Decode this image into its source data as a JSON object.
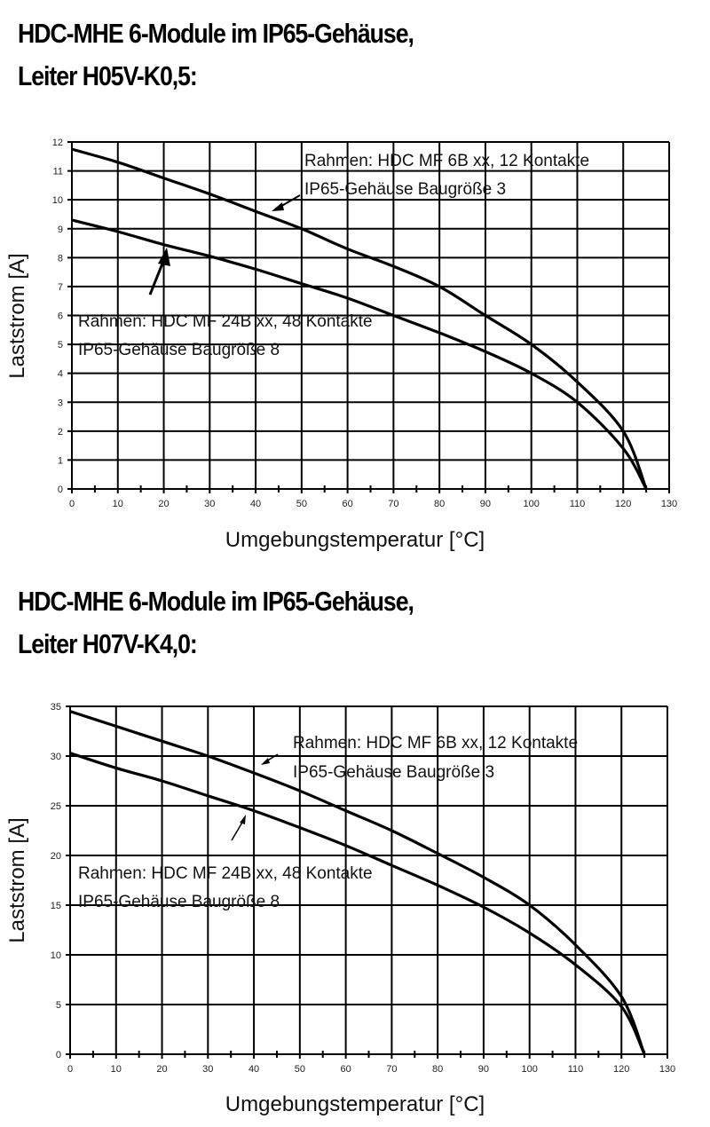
{
  "charts": [
    {
      "title_line1": "HDC-MHE 6-Module im IP65-Gehäuse,",
      "title_line2": "Leiter H05V-K0,5:",
      "xlabel": "Umgebungstemperatur [°C]",
      "ylabel": "Laststrom [A]",
      "annotation_upper_line1": "Rahmen: HDC MF 6B xx, 12 Kontakte",
      "annotation_upper_line2": "IP65-Gehäuse Baugröße 3",
      "annotation_lower_line1": "Rahmen: HDC MF 24B xx, 48 Kontakte",
      "annotation_lower_line2": "IP65-Gehäuse Baugröße 8"
    },
    {
      "title_line1": "HDC-MHE 6-Module im IP65-Gehäuse,",
      "title_line2": "Leiter H07V-K4,0:",
      "xlabel": "Umgebungstemperatur [°C]",
      "ylabel": "Laststrom [A]",
      "annotation_upper_line1": "Rahmen: HDC MF 6B xx, 12 Kontakte",
      "annotation_upper_line2": "IP65-Gehäuse Baugröße 3",
      "annotation_lower_line1": "Rahmen: HDC MF 24B xx, 48 Kontakte",
      "annotation_lower_line2": "IP65-Gehäuse Baugröße 8"
    }
  ],
  "chart_data": [
    {
      "type": "line",
      "title": "HDC-MHE 6-Module im IP65-Gehäuse, Leiter H05V-K0,5:",
      "xlabel": "Umgebungstemperatur [°C]",
      "ylabel": "Laststrom [A]",
      "xlim": [
        0,
        130
      ],
      "ylim": [
        0,
        12
      ],
      "xticks": [
        0,
        10,
        20,
        30,
        40,
        50,
        60,
        70,
        80,
        90,
        100,
        110,
        120,
        130
      ],
      "yticks": [
        0,
        1,
        2,
        3,
        4,
        5,
        6,
        7,
        8,
        9,
        10,
        11,
        12
      ],
      "grid": true,
      "legend": "inline annotations with arrows",
      "x": [
        0,
        10,
        20,
        30,
        40,
        50,
        60,
        70,
        80,
        90,
        100,
        110,
        120,
        125
      ],
      "series": [
        {
          "name": "Rahmen: HDC MF 6B xx, 12 Kontakte / IP65-Gehäuse Baugröße 3",
          "values": [
            11.75,
            11.3,
            10.75,
            10.2,
            9.6,
            9.0,
            8.3,
            7.7,
            7.0,
            6.0,
            5.0,
            3.7,
            2.0,
            0
          ]
        },
        {
          "name": "Rahmen: HDC MF 24B xx, 48 Kontakte / IP65-Gehäuse Baugröße 8",
          "values": [
            9.3,
            8.9,
            8.45,
            8.05,
            7.6,
            7.1,
            6.6,
            6.0,
            5.4,
            4.75,
            4.0,
            3.0,
            1.4,
            0
          ]
        }
      ]
    },
    {
      "type": "line",
      "title": "HDC-MHE 6-Module im IP65-Gehäuse, Leiter H07V-K4,0:",
      "xlabel": "Umgebungstemperatur [°C]",
      "ylabel": "Laststrom [A]",
      "xlim": [
        0,
        130
      ],
      "ylim": [
        0,
        35
      ],
      "xticks": [
        0,
        10,
        20,
        30,
        40,
        50,
        60,
        70,
        80,
        90,
        100,
        110,
        120,
        130
      ],
      "yticks": [
        0,
        5,
        10,
        15,
        20,
        25,
        30,
        35
      ],
      "grid": true,
      "legend": "inline annotations with arrows",
      "x": [
        0,
        10,
        20,
        30,
        40,
        50,
        60,
        70,
        80,
        90,
        100,
        110,
        120,
        125
      ],
      "series": [
        {
          "name": "Rahmen: HDC MF 6B xx, 12 Kontakte / IP65-Gehäuse Baugröße 3",
          "values": [
            34.5,
            33.0,
            31.5,
            30.0,
            28.3,
            26.5,
            24.5,
            22.5,
            20.2,
            17.8,
            15.0,
            11.0,
            5.8,
            0
          ]
        },
        {
          "name": "Rahmen: HDC MF 24B xx, 48 Kontakte / IP65-Gehäuse Baugröße 8",
          "values": [
            30.3,
            28.8,
            27.5,
            26.0,
            24.5,
            22.8,
            21.0,
            19.0,
            17.0,
            14.8,
            12.2,
            9.0,
            4.8,
            0
          ]
        }
      ]
    }
  ]
}
